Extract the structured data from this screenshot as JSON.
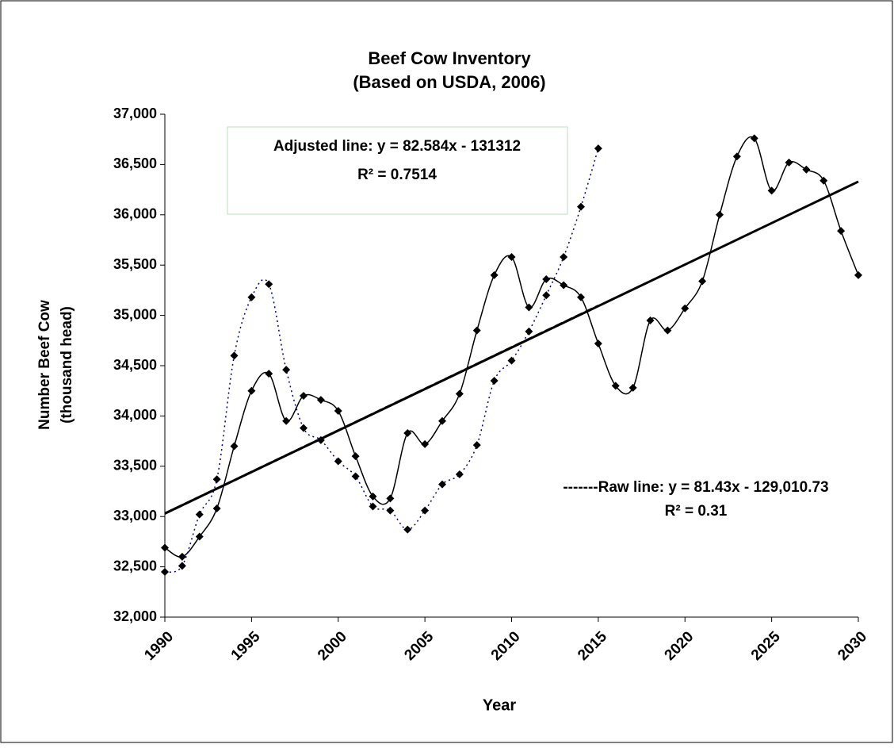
{
  "chart_data": {
    "type": "line",
    "title": [
      "Beef Cow Inventory",
      "(Based on USDA, 2006)"
    ],
    "xlabel": "Year",
    "ylabel": [
      "Number Beef Cow",
      "(thousand head)"
    ],
    "xlim": [
      1990,
      2030
    ],
    "xticks": [
      1990,
      1995,
      2000,
      2005,
      2010,
      2015,
      2020,
      2025,
      2030
    ],
    "ylim": [
      32000,
      37000
    ],
    "yticks": [
      {
        "value": 32000,
        "label": "32,000"
      },
      {
        "value": 32500,
        "label": "32,500"
      },
      {
        "value": 33000,
        "label": "33,000"
      },
      {
        "value": 33500,
        "label": "33,500"
      },
      {
        "value": 34000,
        "label": "34,000"
      },
      {
        "value": 34500,
        "label": "34,500"
      },
      {
        "value": 35000,
        "label": "35,000"
      },
      {
        "value": 35500,
        "label": "35,500"
      },
      {
        "value": 36000,
        "label": "36,000"
      },
      {
        "value": 36500,
        "label": "36,500"
      },
      {
        "value": 37000,
        "label": "37,000"
      }
    ],
    "series": [
      {
        "color": "#000000",
        "dash": "none",
        "smooth": true,
        "markers": true,
        "x": [
          1990,
          1991,
          1992,
          1993,
          1994,
          1995,
          1996,
          1997,
          1998,
          1999,
          2000,
          2001,
          2002,
          2003,
          2004,
          2005,
          2006,
          2007,
          2008,
          2009,
          2010,
          2011,
          2012,
          2013,
          2014,
          2015,
          2016,
          2017,
          2018,
          2019,
          2020,
          2021,
          2022,
          2023,
          2024,
          2025,
          2026,
          2027,
          2028,
          2029,
          2030
        ],
        "values": [
          32690,
          32600,
          32800,
          33080,
          33700,
          34250,
          34420,
          33950,
          34200,
          34160,
          34050,
          33600,
          33200,
          33180,
          33830,
          33720,
          33950,
          34220,
          34850,
          35400,
          35580,
          35080,
          35360,
          35300,
          35180,
          34720,
          34300,
          34280,
          34950,
          34850,
          35070,
          35340,
          36000,
          36580,
          36760,
          36240,
          36520,
          36450,
          36340,
          35840,
          35400
        ]
      },
      {
        "color": "#000080",
        "dash": "2,4",
        "smooth": true,
        "markers": true,
        "x": [
          1990,
          1991,
          1992,
          1993,
          1994,
          1995,
          1996,
          1997,
          1998,
          1999,
          2000,
          2001,
          2002,
          2003,
          2004,
          2005,
          2006,
          2007,
          2008,
          2009,
          2010,
          2011,
          2012,
          2013,
          2014,
          2015
        ],
        "values": [
          32450,
          32510,
          33020,
          33370,
          34600,
          35180,
          35310,
          34460,
          33880,
          33760,
          33550,
          33400,
          33100,
          33060,
          32870,
          33060,
          33320,
          33420,
          33710,
          34350,
          34550,
          34840,
          35200,
          35580,
          36080,
          36660
        ]
      },
      {
        "color": "#000000",
        "dash": "none",
        "smooth": false,
        "markers": false,
        "width": 3,
        "x": [
          1990,
          2030
        ],
        "values": [
          33030,
          36330
        ]
      },
      {
        "color": "#000000",
        "dash": "10,4",
        "smooth": false,
        "markers": false,
        "width": 3,
        "x": [
          1990,
          2015
        ],
        "values": [
          33030,
          35095
        ]
      }
    ],
    "annotations": [
      {
        "lines": [
          "Adjusted line: y = 82.584x - 131312",
          "R² = 0.7514"
        ],
        "boxed": true
      },
      {
        "lines": [
          "-------Raw line: y = 81.43x - 129,010.73",
          "R² = 0.31"
        ],
        "boxed": false
      }
    ]
  }
}
